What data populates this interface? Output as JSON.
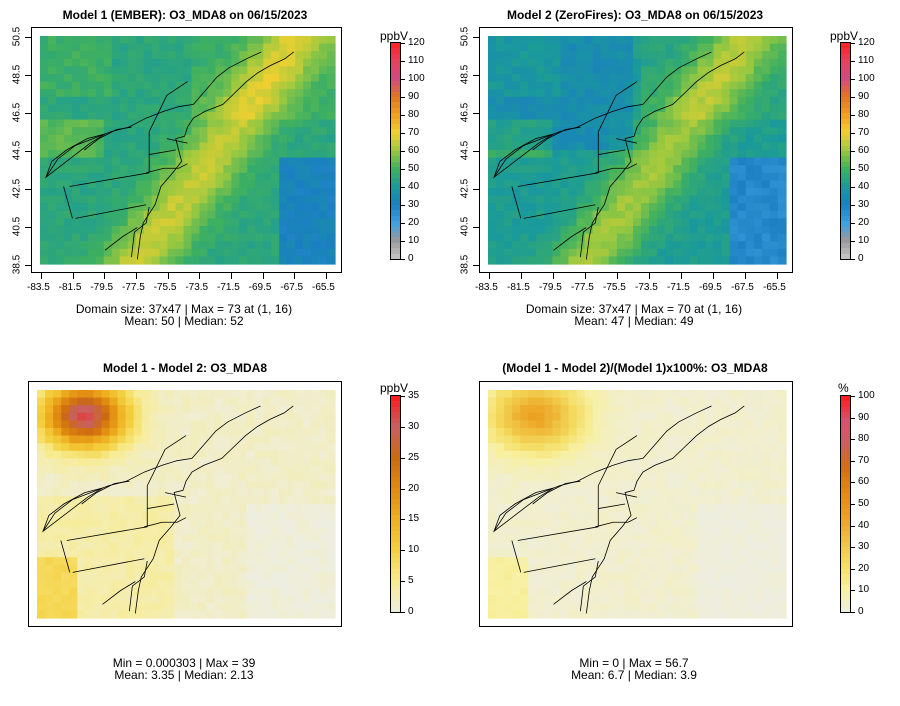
{
  "panels": [
    {
      "title": "Model 1 (EMBER): O3_MDA8 on 06/15/2023",
      "kind": "conc",
      "unit": "ppbV",
      "cbar_ticks": [
        "0",
        "10",
        "20",
        "30",
        "40",
        "50",
        "60",
        "70",
        "80",
        "90",
        "100",
        "110",
        "120"
      ],
      "has_axes": true,
      "x_ticks": [
        "-83.5",
        "-81.5",
        "-79.5",
        "-77.5",
        "-75.5",
        "-73.5",
        "-71.5",
        "-69.5",
        "-67.5",
        "-65.5"
      ],
      "y_ticks": [
        "38.5",
        "40.5",
        "42.5",
        "44.5",
        "46.5",
        "48.5",
        "50.5"
      ],
      "stats1": "Domain size: 37x47 | Max = 73 at (1, 16)",
      "stats2": "Mean: 50 |  Median: 52"
    },
    {
      "title": "Model 2 (ZeroFires): O3_MDA8 on 06/15/2023",
      "kind": "conc2",
      "unit": "ppbV",
      "cbar_ticks": [
        "0",
        "10",
        "20",
        "30",
        "40",
        "50",
        "60",
        "70",
        "80",
        "90",
        "100",
        "110",
        "120"
      ],
      "has_axes": true,
      "x_ticks": [
        "-83.5",
        "-81.5",
        "-79.5",
        "-77.5",
        "-75.5",
        "-73.5",
        "-71.5",
        "-69.5",
        "-67.5",
        "-65.5"
      ],
      "y_ticks": [
        "38.5",
        "40.5",
        "42.5",
        "44.5",
        "46.5",
        "48.5",
        "50.5"
      ],
      "stats1": "Domain size: 37x47 | Max = 70 at (1, 16)",
      "stats2": "Mean: 47 |  Median: 49"
    },
    {
      "title": "Model 1 - Model 2: O3_MDA8",
      "kind": "diff",
      "unit": "ppbV",
      "cbar_ticks": [
        "0",
        "5",
        "10",
        "15",
        "20",
        "25",
        "30",
        "35"
      ],
      "has_axes": false,
      "stats1": "Min = 0.000303 | Max = 39",
      "stats2": "Mean: 3.35 |  Median: 2.13"
    },
    {
      "title": "(Model 1 - Model 2)/(Model 1)x100%: O3_MDA8",
      "kind": "pct",
      "unit": "%",
      "cbar_ticks": [
        "0",
        "10",
        "20",
        "30",
        "40",
        "50",
        "60",
        "70",
        "80",
        "90",
        "100"
      ],
      "has_axes": false,
      "stats1": "Min = 0 | Max = 56.7",
      "stats2": "Mean: 6.7 |  Median: 3.9"
    }
  ],
  "colors": {
    "conc_scale": [
      "#c8c8c8",
      "#9a9a9a",
      "#3fa0e0",
      "#1a7fc0",
      "#1a9a9a",
      "#3fb060",
      "#98c840",
      "#f0d030",
      "#f0a020",
      "#e07820",
      "#d04a80",
      "#e84060",
      "#ff2020"
    ],
    "diff_scale": [
      "#eeeee0",
      "#f8ec90",
      "#f4d040",
      "#eeb020",
      "#e08a10",
      "#cc6a10",
      "#c86060",
      "#ff1a1a"
    ],
    "pct_scale": [
      "#eeeee0",
      "#f8f0a0",
      "#f4dc60",
      "#f0c040",
      "#eca020",
      "#e08a10",
      "#d07010",
      "#c86060",
      "#d85070",
      "#ff1a1a"
    ]
  }
}
